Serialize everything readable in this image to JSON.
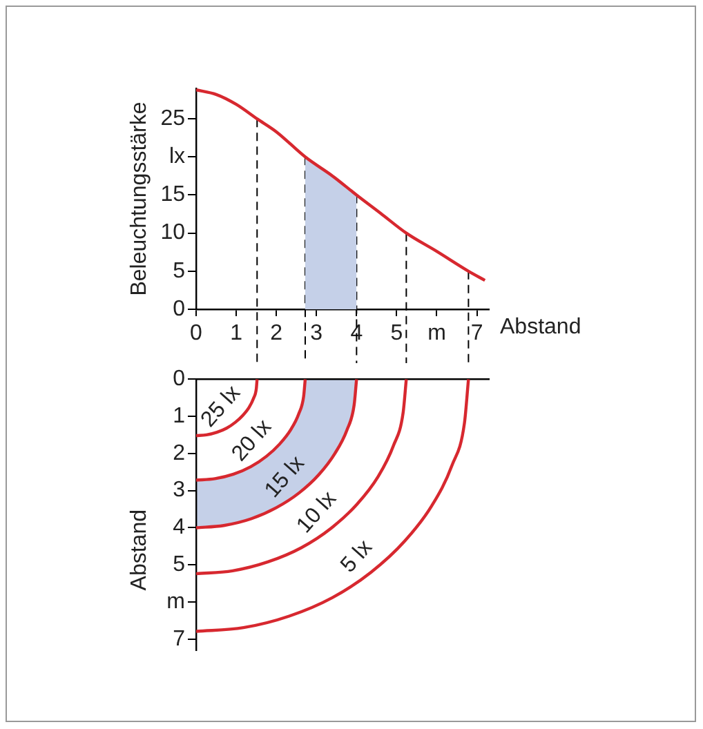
{
  "chart_data": [
    {
      "type": "line",
      "xlabel": "Abstand",
      "ylabel": "Beleuchtungsstärke",
      "x": [
        0,
        0.5,
        1,
        1.52,
        2,
        2.72,
        3.4,
        4,
        4.6,
        5.24,
        6,
        6.79,
        7.2
      ],
      "series": [
        {
          "color": "#d7282f",
          "values": [
            28.8,
            28.2,
            26.9,
            25,
            23.3,
            20,
            17.5,
            15,
            12.6,
            10,
            7.6,
            5,
            3.8
          ]
        },
        {
          "type": "area",
          "color": "#c5d0e8",
          "x": [
            2.72,
            3.4,
            4
          ],
          "values": [
            20,
            17.5,
            15
          ]
        }
      ],
      "xlim": [
        0,
        7.3
      ],
      "ylim": [
        0,
        29
      ],
      "xticks": [
        0,
        1,
        2,
        3,
        4,
        5,
        {
          "value": 6,
          "label": "m"
        },
        7
      ],
      "yticks": [
        0,
        5,
        10,
        15,
        {
          "value": 20,
          "label": "lx"
        },
        25
      ],
      "ref_lines": [
        {
          "axis": "x",
          "value": 1.52,
          "color": "#000000",
          "line_style": "dashed"
        },
        {
          "axis": "x",
          "value": 2.72,
          "color": "#000000",
          "line_style": "dashed"
        },
        {
          "axis": "x",
          "value": 4,
          "color": "#000000",
          "line_style": "dashed"
        },
        {
          "axis": "x",
          "value": 5.24,
          "color": "#000000",
          "line_style": "dashed"
        },
        {
          "axis": "x",
          "value": 6.79,
          "color": "#000000",
          "line_style": "dashed"
        }
      ],
      "grid": false,
      "marker": "none"
    },
    {
      "type": "line",
      "ylabel": "Abstand",
      "series": [
        {
          "color": "#d7282f",
          "x": [
            0,
            0.26,
            0.52,
            0.76,
            0.98,
            1.16,
            1.32,
            1.43,
            1.5,
            1.52
          ],
          "values": [
            1.52,
            1.5,
            1.43,
            1.32,
            1.16,
            0.98,
            0.76,
            0.52,
            0.26,
            0
          ]
        },
        {
          "color": "#d7282f",
          "x": [
            0,
            0.47,
            0.93,
            1.36,
            1.75,
            2.08,
            2.36,
            2.56,
            2.68,
            2.72
          ],
          "values": [
            2.72,
            2.68,
            2.56,
            2.36,
            2.08,
            1.75,
            1.36,
            0.93,
            0.47,
            0
          ]
        },
        {
          "color": "#d7282f",
          "x": [
            0,
            0.69,
            1.37,
            2,
            2.57,
            3.06,
            3.46,
            3.76,
            3.94,
            4
          ],
          "values": [
            4,
            3.94,
            3.76,
            3.46,
            3.06,
            2.57,
            2,
            1.37,
            0.69,
            0
          ]
        },
        {
          "color": "#d7282f",
          "x": [
            0,
            0.91,
            1.79,
            2.62,
            3.37,
            4.01,
            4.54,
            4.92,
            5.16,
            5.24
          ],
          "values": [
            5.24,
            5.16,
            4.92,
            4.54,
            4.01,
            3.37,
            2.62,
            1.79,
            0.91,
            0
          ]
        },
        {
          "color": "#d7282f",
          "x": [
            0,
            1.18,
            2.32,
            3.4,
            4.36,
            5.2,
            5.88,
            6.38,
            6.69,
            6.79
          ],
          "values": [
            6.79,
            6.69,
            6.38,
            5.88,
            5.2,
            4.36,
            3.4,
            2.32,
            1.18,
            0
          ]
        }
      ],
      "xlim": [
        0,
        7.3
      ],
      "ylim": [
        7.3,
        0
      ],
      "yticks": [
        0,
        1,
        2,
        3,
        4,
        5,
        {
          "value": 6,
          "label": "m"
        },
        7
      ],
      "tick_labels": "y",
      "annotations": [
        "25 lx",
        "20 lx",
        "15 lx",
        "10 lx",
        "5 lx"
      ],
      "grid": false,
      "marker": "none"
    }
  ]
}
